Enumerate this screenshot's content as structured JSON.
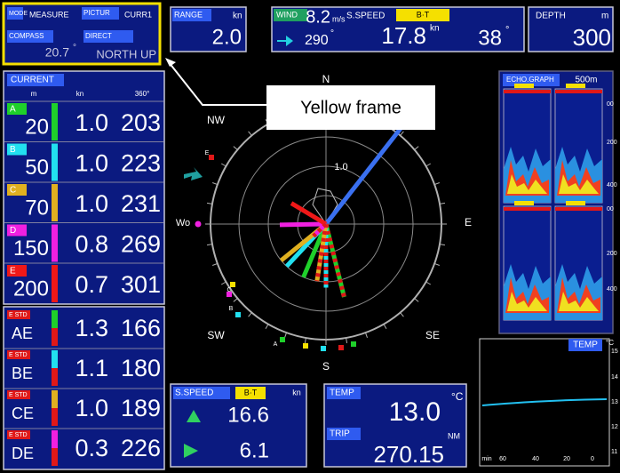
{
  "mode_panel": {
    "mode_label": "MODE",
    "mode": "MEASURE",
    "picture_label": "PICTUR",
    "picture": "CURR1",
    "compass_label": "COMPASS",
    "compass": "20.7",
    "compass_unit": "°",
    "direct_label": "DIRECT",
    "direct": "NORTH UP"
  },
  "range": {
    "label": "RANGE",
    "unit": "kn",
    "value": "2.0"
  },
  "wind": {
    "label": "WIND",
    "speed": "8.2",
    "speed_unit": "m/s",
    "direction": "290",
    "direction_unit": "°"
  },
  "ship_speed_top": {
    "label": "S.SPEED",
    "mode": "B·T",
    "value": "17.8",
    "unit": "kn",
    "heading": "38",
    "heading_unit": "°"
  },
  "depth": {
    "label": "DEPTH",
    "unit": "m",
    "value": "300"
  },
  "current_table": {
    "title": "CURRENT",
    "columns": [
      "m",
      "kn",
      "360°"
    ],
    "rows": [
      {
        "tag": "A",
        "depth": "20",
        "speed": "1.0",
        "direction": "203",
        "color": "#1fd02a"
      },
      {
        "tag": "B",
        "depth": "50",
        "speed": "1.0",
        "direction": "223",
        "color": "#22e0f0"
      },
      {
        "tag": "C",
        "depth": "70",
        "speed": "1.0",
        "direction": "231",
        "color": "#e0b020"
      },
      {
        "tag": "D",
        "depth": "150",
        "speed": "0.8",
        "direction": "269",
        "color": "#f020e0"
      },
      {
        "tag": "E",
        "depth": "200",
        "speed": "0.7",
        "direction": "301",
        "color": "#f01818"
      }
    ]
  },
  "std_table": {
    "rows": [
      {
        "tag": "E STD",
        "name": "AE",
        "speed": "1.3",
        "direction": "166",
        "color": "#1fd02a"
      },
      {
        "tag": "E STD",
        "name": "BE",
        "speed": "1.1",
        "direction": "180",
        "color": "#22e0f0"
      },
      {
        "tag": "E STD",
        "name": "CE",
        "speed": "1.0",
        "direction": "189",
        "color": "#e0b020"
      },
      {
        "tag": "E STD",
        "name": "DE",
        "speed": "0.3",
        "direction": "226",
        "color": "#f020e0"
      }
    ]
  },
  "compass_rose": {
    "labels": {
      "N": "N",
      "NW": "NW",
      "E": "E",
      "SE": "SE",
      "S": "S",
      "SW": "SW",
      "W": "Wo"
    },
    "ring_label": "1.0",
    "markers": [
      "E",
      "C",
      "B",
      "A"
    ]
  },
  "callout": {
    "text": "Yellow frame"
  },
  "echo_graph": {
    "title": "ECHO.GRAPH",
    "range": "500m",
    "scale": [
      "00",
      "200",
      "400",
      "00",
      "200",
      "400"
    ]
  },
  "ship_speed_panel": {
    "label": "S.SPEED",
    "mode": "B·T",
    "unit": "kn",
    "longitudinal": "16.6",
    "transverse": "6.1"
  },
  "temp_panel": {
    "label": "TEMP",
    "value": "13.0",
    "unit": "°C",
    "trip_label": "TRIP",
    "trip_unit": "NM",
    "trip": "270.15"
  },
  "temp_graph": {
    "title": "TEMP",
    "unit": "°C",
    "y_labels": [
      "15",
      "14",
      "13",
      "12",
      "11"
    ],
    "x_labels": [
      "min",
      "60",
      "40",
      "20",
      "0"
    ]
  }
}
